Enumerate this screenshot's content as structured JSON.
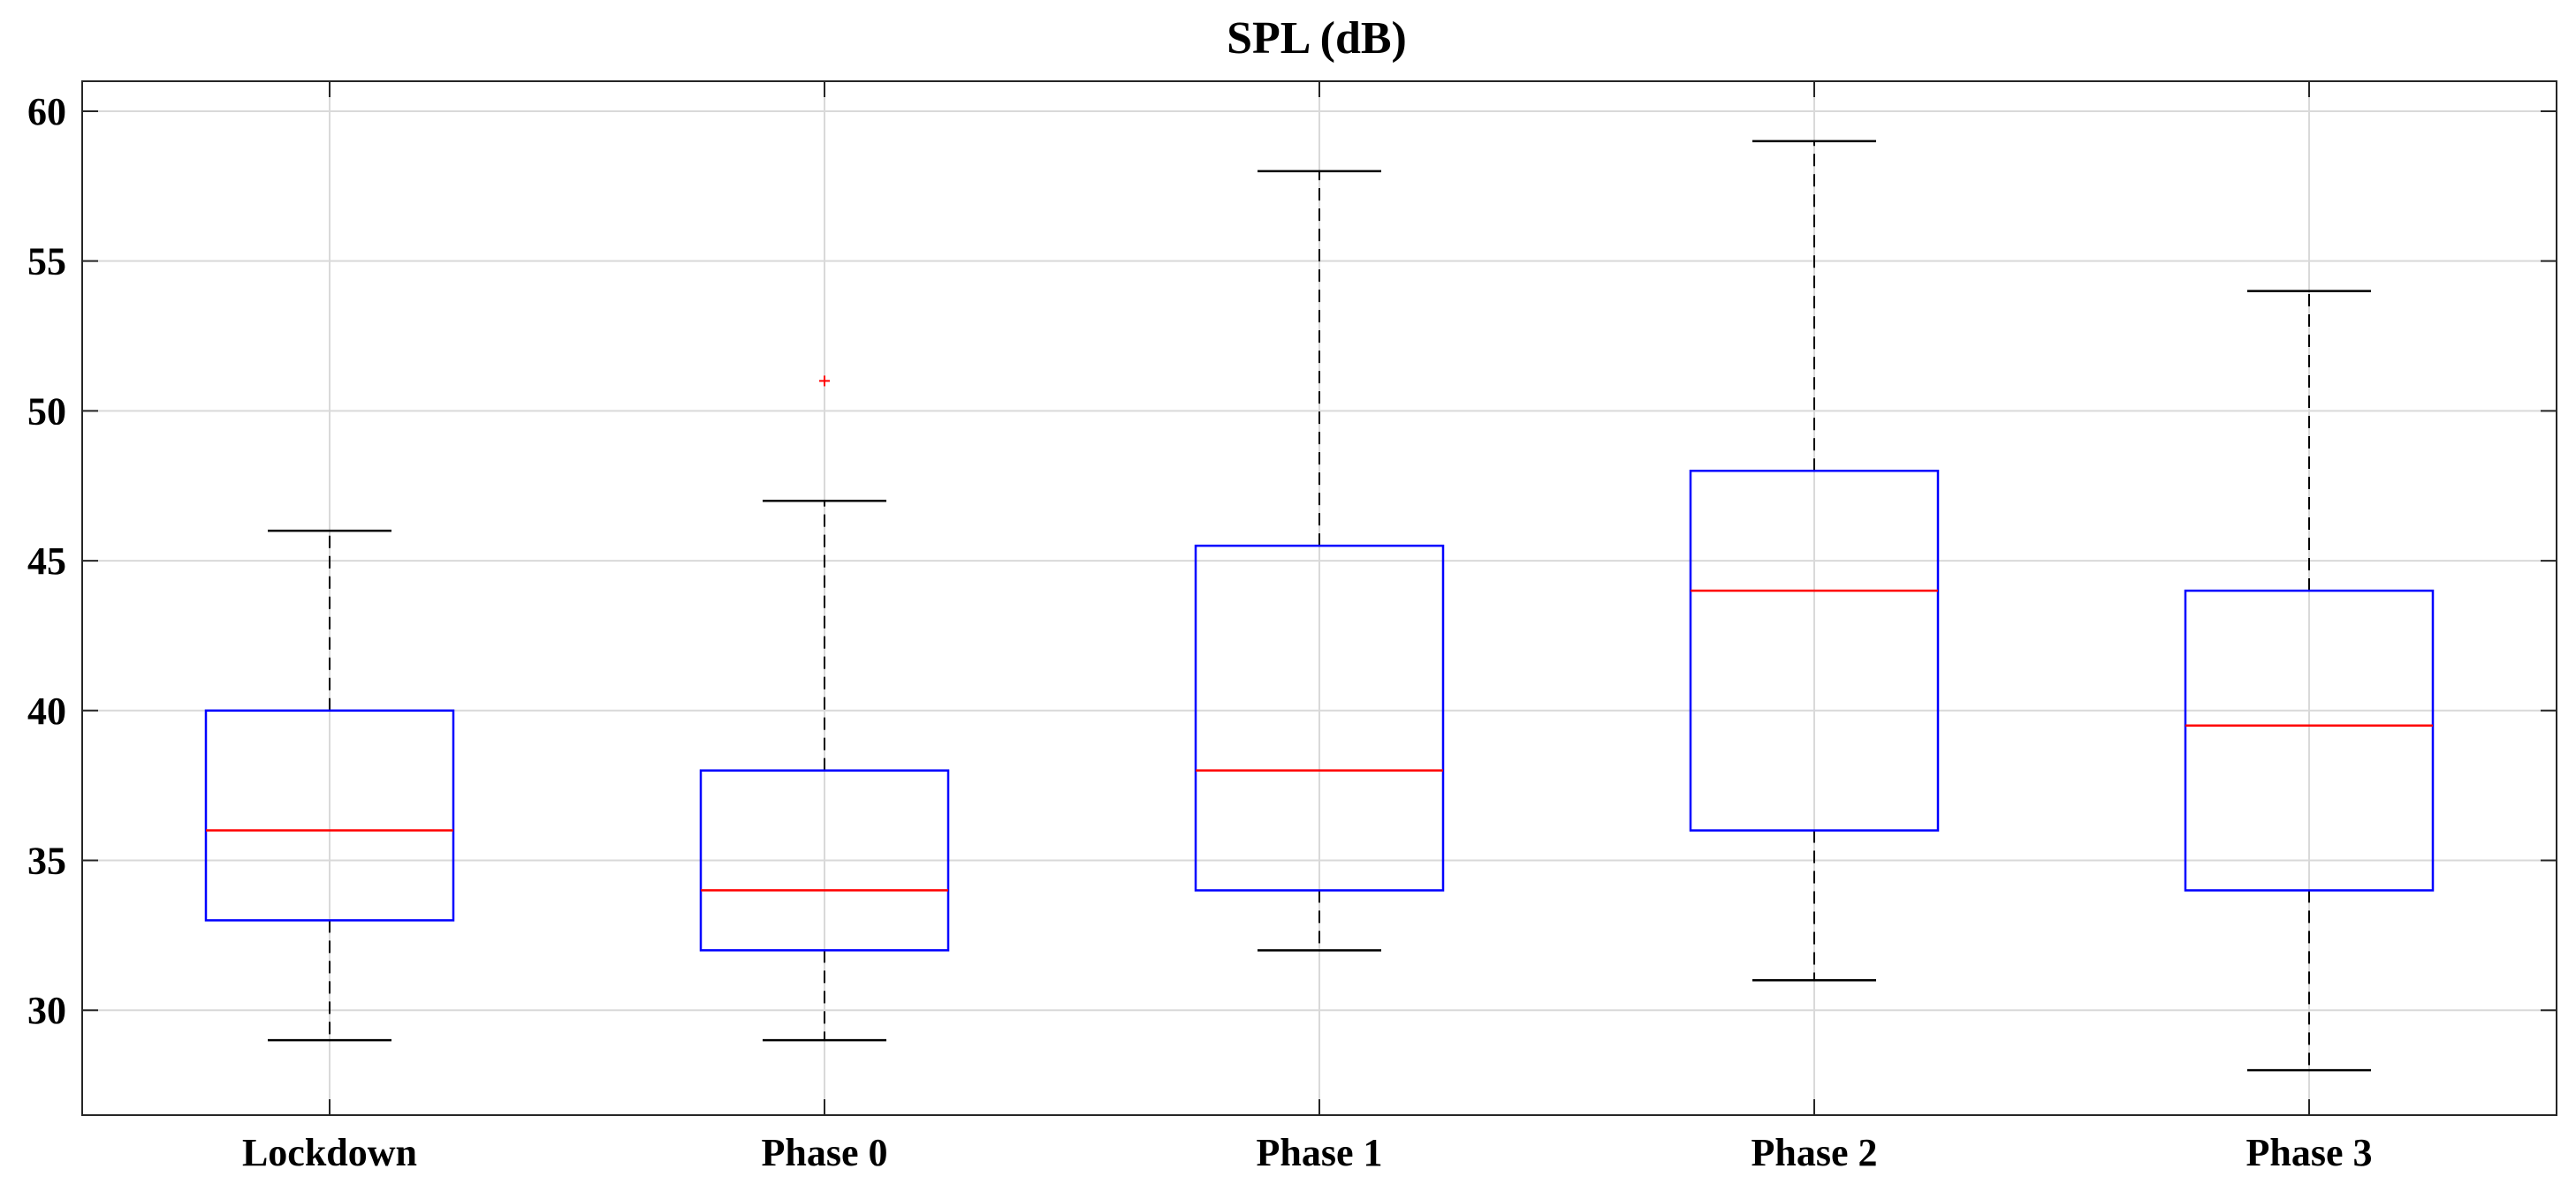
{
  "chart_data": {
    "type": "boxplot",
    "title": "SPL (dB)",
    "xlabel": "",
    "ylabel": "",
    "ylim": [
      26.5,
      61
    ],
    "yticks": [
      30,
      35,
      40,
      45,
      50,
      55,
      60
    ],
    "grid": true,
    "categories": [
      "Lockdown",
      "Phase 0",
      "Phase 1",
      "Phase 2",
      "Phase 3"
    ],
    "boxes": [
      {
        "category": "Lockdown",
        "whisker_low": 29,
        "q1": 33,
        "median": 36,
        "q3": 40,
        "whisker_high": 46,
        "outliers": []
      },
      {
        "category": "Phase 0",
        "whisker_low": 29,
        "q1": 32,
        "median": 34,
        "q3": 38,
        "whisker_high": 47,
        "outliers": [
          51
        ]
      },
      {
        "category": "Phase 1",
        "whisker_low": 32,
        "q1": 34,
        "median": 38,
        "q3": 45.5,
        "whisker_high": 58,
        "outliers": []
      },
      {
        "category": "Phase 2",
        "whisker_low": 31,
        "q1": 36,
        "median": 44,
        "q3": 48,
        "whisker_high": 59,
        "outliers": []
      },
      {
        "category": "Phase 3",
        "whisker_low": 28,
        "q1": 34,
        "median": 39.5,
        "q3": 44,
        "whisker_high": 54,
        "outliers": []
      }
    ],
    "colors": {
      "box": "#0000ff",
      "median": "#ff0000",
      "whisker": "#000000",
      "outlier": "#ff0000",
      "grid": "#d9d9d9",
      "axis": "#262626"
    }
  }
}
